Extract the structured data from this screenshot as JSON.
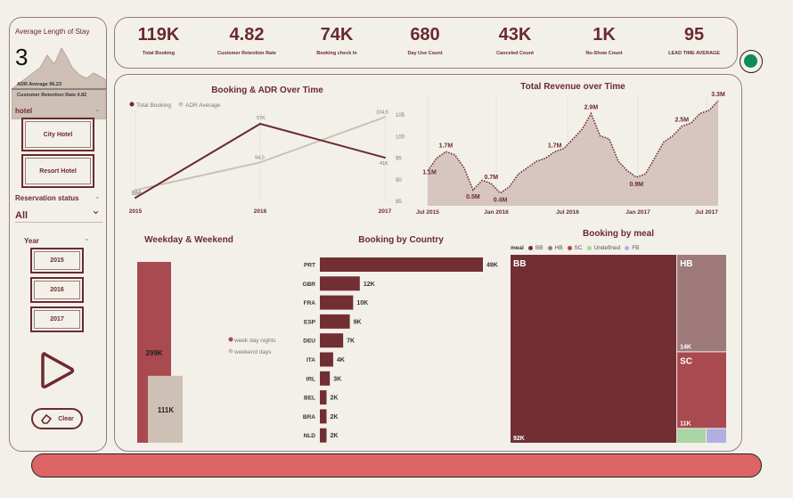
{
  "left_panel": {
    "avg_stay_title": "Average Length of Stay",
    "avg_stay_value": "3",
    "adr_line": "ADR Average 96.23",
    "retention_line": "Customer Retention Rate 4.82",
    "hotel_label": "hotel",
    "hotel_options": [
      "City Hotel",
      "Resort Hotel"
    ],
    "reservation_label": "Reservation status",
    "reservation_value": "All",
    "year_label": "Year",
    "years": [
      "2015",
      "2016",
      "2017"
    ],
    "clear_label": "Clear"
  },
  "kpis": [
    {
      "value": "119K",
      "label": "Total Booking"
    },
    {
      "value": "4.82",
      "label": "Customer Retention Rate"
    },
    {
      "value": "74K",
      "label": "Booking check In"
    },
    {
      "value": "680",
      "label": "Day Use Count"
    },
    {
      "value": "43K",
      "label": "Canceled Count"
    },
    {
      "value": "1K",
      "label": "No-Show Count"
    },
    {
      "value": "95",
      "label": "LEAD TIME AVERAGE"
    }
  ],
  "colors": {
    "maroon": "#6b2a30",
    "accent": "#a84a4f",
    "beige": "#cfc0b6",
    "green_dot": "#0e8a5f",
    "bottom_bar": "#dd6464"
  },
  "chart_data": [
    {
      "type": "line",
      "title": "Booking & ADR Over Time",
      "x": [
        "2015",
        "2016",
        "2017"
      ],
      "series": [
        {
          "name": "Total Booking",
          "values": [
            22,
            57,
            41
          ],
          "labels": [
            "22K",
            "57K",
            "41K"
          ]
        },
        {
          "name": "ADR Average",
          "values": [
            87.6,
            94.0,
            104.5
          ],
          "labels": [
            "87.6",
            "94.0",
            "104.5"
          ]
        }
      ],
      "y2_ticks": [
        "105",
        "100",
        "95",
        "90",
        "85"
      ],
      "y2lim": [
        85,
        105
      ],
      "legend": "top-left"
    },
    {
      "type": "area",
      "title": "Total Revenue over Time",
      "x_ticks": [
        "Jul 2015",
        "Jan 2016",
        "Jul 2016",
        "Jan 2017",
        "Jul 2017"
      ],
      "values": [
        1.1,
        1.5,
        1.7,
        1.6,
        1.2,
        0.5,
        0.8,
        0.7,
        0.4,
        0.6,
        1.0,
        1.2,
        1.4,
        1.5,
        1.7,
        1.8,
        2.1,
        2.4,
        2.9,
        2.2,
        2.1,
        1.4,
        1.1,
        0.9,
        1.0,
        1.5,
        2.0,
        2.2,
        2.5,
        2.6,
        2.9,
        3.0,
        3.3
      ],
      "data_labels": [
        {
          "index": 0,
          "text": "1.1M"
        },
        {
          "index": 2,
          "text": "1.7M"
        },
        {
          "index": 5,
          "text": "0.5M"
        },
        {
          "index": 7,
          "text": "0.7M"
        },
        {
          "index": 8,
          "text": "0.4M"
        },
        {
          "index": 14,
          "text": "1.7M"
        },
        {
          "index": 18,
          "text": "2.9M"
        },
        {
          "index": 23,
          "text": "0.9M"
        },
        {
          "index": 28,
          "text": "2.5M"
        },
        {
          "index": 32,
          "text": "3.3M"
        }
      ],
      "ylim": [
        0,
        3.5
      ]
    },
    {
      "type": "bar",
      "title": "Weekday & Weekend",
      "categories": [
        "week day nights",
        "weekend days"
      ],
      "values": [
        299,
        111
      ],
      "labels": [
        "299K",
        "111K"
      ],
      "legend": "right"
    },
    {
      "type": "bar",
      "title": "Booking by Country",
      "orientation": "horizontal",
      "categories": [
        "PRT",
        "GBR",
        "FRA",
        "ESP",
        "DEU",
        "ITA",
        "IRL",
        "BEL",
        "BRA",
        "NLD"
      ],
      "values": [
        49,
        12,
        10,
        9,
        7,
        4,
        3,
        2,
        2,
        2
      ],
      "labels": [
        "49K",
        "12K",
        "10K",
        "9K",
        "7K",
        "4K",
        "3K",
        "2K",
        "2K",
        "2K"
      ]
    },
    {
      "type": "treemap",
      "title": "Booking by meal",
      "legend_title": "meal",
      "categories": [
        "BB",
        "HB",
        "SC",
        "Undefined",
        "FB"
      ],
      "values": [
        92,
        14,
        11,
        1.2,
        0.8
      ],
      "labels": [
        "92K",
        "14K",
        "11K",
        "",
        ""
      ],
      "colors": [
        "#722f33",
        "#9e7a7b",
        "#a84a4f",
        "#a9d4a3",
        "#b0b0e0"
      ],
      "legend": "top-left"
    }
  ]
}
